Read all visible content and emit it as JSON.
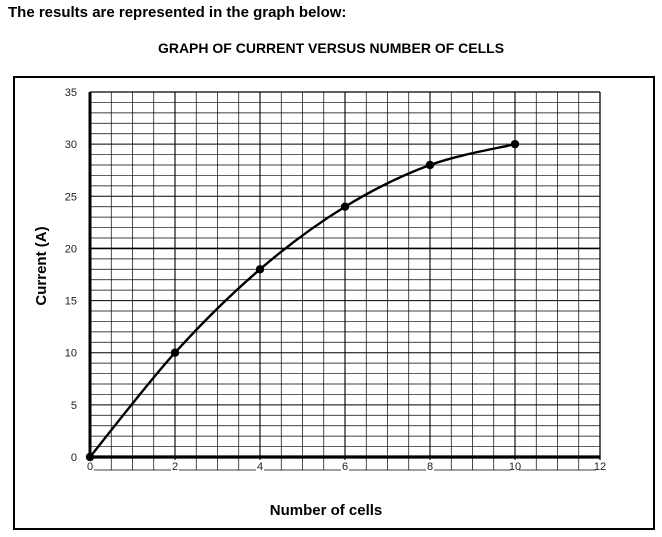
{
  "intro_text": "The results are represented in the graph below:",
  "chart_data": {
    "type": "line",
    "title": "GRAPH OF CURRENT VERSUS NUMBER OF CELLS",
    "xlabel": "Number of cells",
    "ylabel": "Current (A)",
    "xlim": [
      0,
      12
    ],
    "ylim": [
      0,
      35
    ],
    "x_ticks": [
      0,
      2,
      4,
      6,
      8,
      10,
      12
    ],
    "y_ticks": [
      0,
      5,
      10,
      15,
      20,
      25,
      30,
      35
    ],
    "grid": true,
    "legend": "none",
    "series": [
      {
        "x": [
          0,
          2,
          4,
          6,
          8,
          10
        ],
        "y": [
          0,
          10,
          18,
          24,
          28,
          30
        ]
      }
    ],
    "colors": {
      "line": "#000000",
      "grid": "#000000"
    }
  }
}
